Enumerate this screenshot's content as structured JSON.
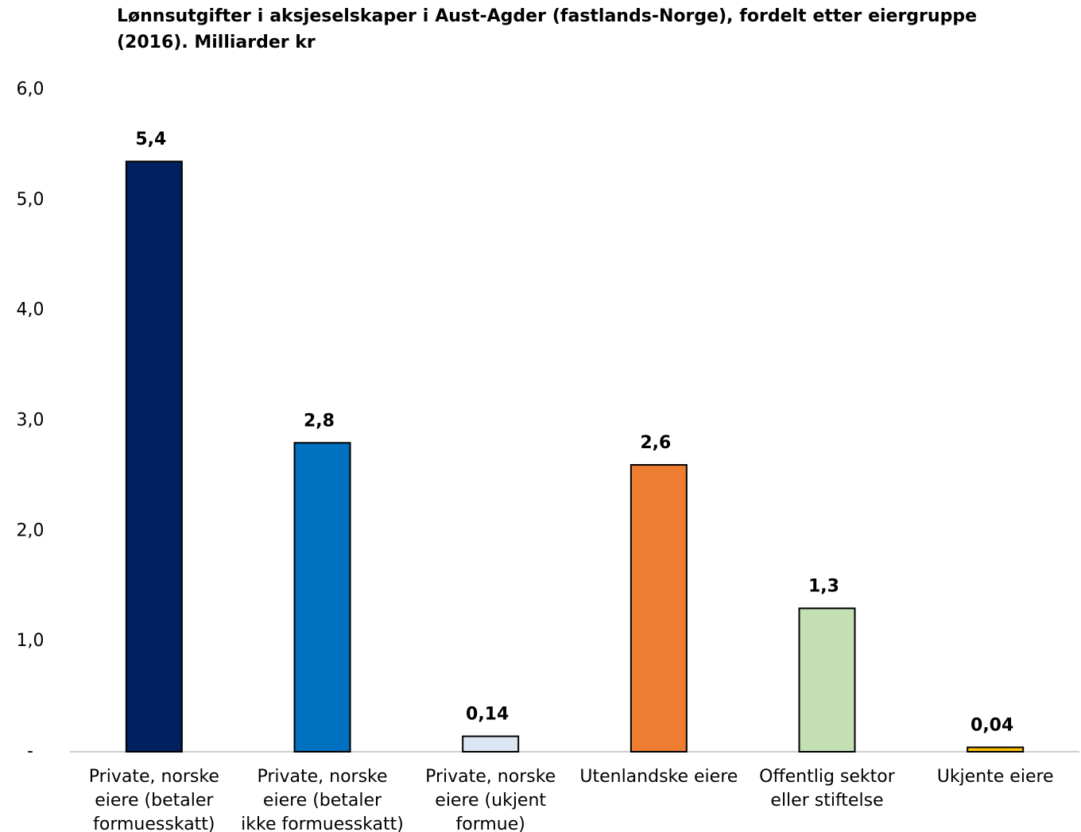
{
  "chart_data": {
    "type": "bar",
    "title": "Lønnsutgifter i aksjeselskaper i Aust-Agder (fastlands-Norge), fordelt etter eiergruppe (2016). Milliarder kr",
    "categories": [
      "Private, norske eiere (betaler formuesskatt)",
      "Private, norske eiere (betaler ikke formuesskatt)",
      "Private, norske eiere (ukjent formue)",
      "Utenlandske eiere",
      "Offentlig sektor eller stiftelse",
      "Ukjente eiere"
    ],
    "values": [
      5.35,
      2.8,
      0.14,
      2.6,
      1.3,
      0.04
    ],
    "value_labels": [
      "5,4",
      "2,8",
      "0,14",
      "2,6",
      "1,3",
      "0,04"
    ],
    "colors": [
      "#002060",
      "#0070c0",
      "#dce6f2",
      "#ed7d31",
      "#c5e0b4",
      "#ffc000"
    ],
    "ylim": [
      0,
      6
    ],
    "yticks": [
      {
        "value": 0,
        "label": "-"
      },
      {
        "value": 1,
        "label": "1,0"
      },
      {
        "value": 2,
        "label": "2,0"
      },
      {
        "value": 3,
        "label": "3,0"
      },
      {
        "value": 4,
        "label": "4,0"
      },
      {
        "value": 5,
        "label": "5,0"
      },
      {
        "value": 6,
        "label": "6,0"
      }
    ],
    "grid": false
  }
}
